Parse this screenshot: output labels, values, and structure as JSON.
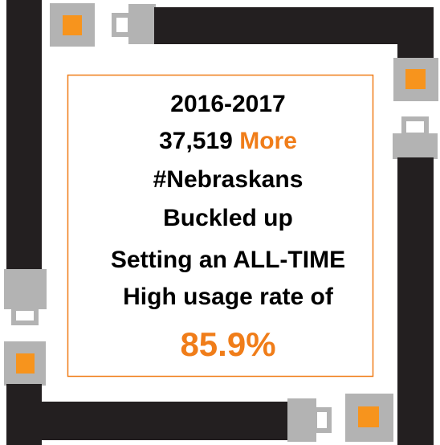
{
  "text_block": {
    "year": "2016-2017",
    "count": "37,519",
    "count_suffix": "More",
    "lines": [
      "#Nebraskans",
      "Buckled up",
      "Setting an ALL-TIME",
      "High usage rate of"
    ],
    "rate": "85.9%"
  }
}
